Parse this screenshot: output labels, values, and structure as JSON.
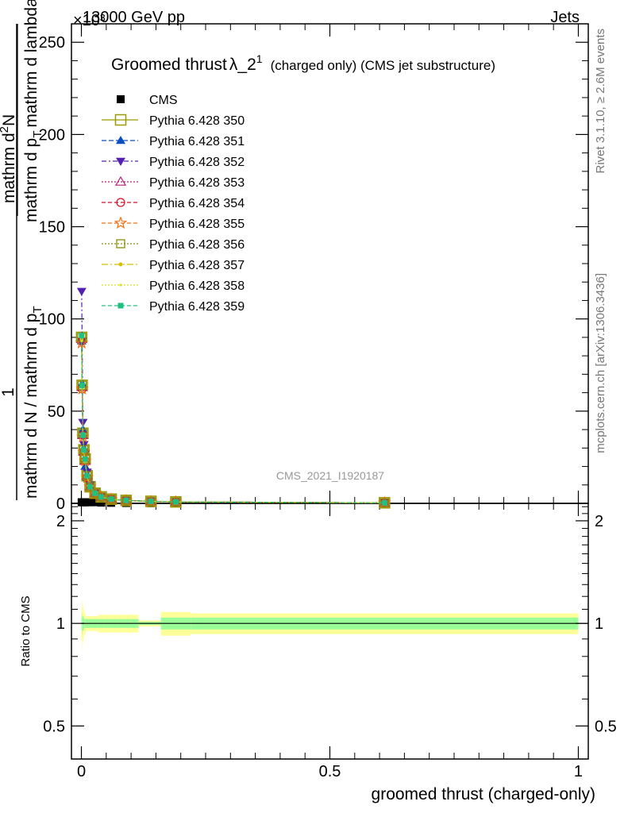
{
  "header": {
    "energy": "13000 GeV pp",
    "process": "Jets",
    "exponent": "×10³",
    "watermark": "CMS_2021_I1920187",
    "rivet": "Rivet 3.1.10, ≥ 2.6M events",
    "mcplots": "mcplots.cern.ch [arXiv:1306.3436]"
  },
  "title": {
    "main": "Groomed thrust",
    "symbol": "λ_2",
    "superscript": "1",
    "suffix": "(charged only) (CMS jet substructure)"
  },
  "ylabel": {
    "prefix": "1",
    "den": "mathrm d N / mathrm d p",
    "den_sub": "T",
    "num": "mathrm d",
    "num_sup": "2",
    "num_tail": "N",
    "num_den": "mathrm d p",
    "num_den_sub": "T",
    "num_den_tail": "mathrm d lambda"
  },
  "ratio_ylabel": "Ratio to CMS",
  "xlabel": "groomed thrust (charged-only)",
  "colors": {
    "band_outer": "#ffff99",
    "band_inner": "#99ff99",
    "cms": "#000000",
    "p350": "#999900",
    "p351": "#0a4fbf",
    "p352": "#5420b0",
    "p353": "#b0207a",
    "p354": "#d0102a",
    "p355": "#f07010",
    "p356": "#8a8a10",
    "p357": "#d8c000",
    "p358": "#d8e020",
    "p359": "#20c080"
  },
  "chart_data": {
    "type": "line",
    "x_range": [
      -0.02,
      1.02
    ],
    "y_range": [
      0,
      260
    ],
    "y_multiplier": 1000,
    "y_ticks": [
      0,
      50,
      100,
      150,
      200,
      250
    ],
    "x_ticks": [
      0,
      0.5,
      1
    ],
    "x_tick_labels": [
      "0",
      "0.5",
      "1"
    ],
    "ratio_range": [
      0.4,
      2.25
    ],
    "ratio_ticks": [
      0.5,
      1,
      2
    ],
    "ratio_tick_labels": [
      "0.5",
      "1",
      "2"
    ],
    "x": [
      0.0005,
      0.0015,
      0.003,
      0.005,
      0.0075,
      0.0115,
      0.0175,
      0.0275,
      0.04,
      0.06,
      0.09,
      0.14,
      0.19,
      0.61
    ],
    "cms_values": [
      0.6,
      0.6,
      0.6,
      0.6,
      0.6,
      0.6,
      0.6,
      0.6,
      0.4,
      0.3,
      0.2,
      0.1,
      0.1,
      0.0
    ],
    "series": [
      {
        "name": "CMS",
        "key": "cms",
        "marker": "square-filled",
        "dash": ""
      },
      {
        "name": "Pythia 6.428 350",
        "key": "p350",
        "marker": "square-open-big",
        "dash": "",
        "values": [
          90,
          64,
          38,
          29,
          24,
          15,
          9,
          5.5,
          3.5,
          2.3,
          1.6,
          1.1,
          0.8,
          0.3
        ]
      },
      {
        "name": "Pythia 6.428 351",
        "key": "p351",
        "marker": "triangle-up-filled",
        "dash": "6,3",
        "values": [
          88,
          65,
          40,
          30,
          20,
          14,
          9,
          5.3,
          3.4,
          2.2,
          1.5,
          1.0,
          0.8,
          0.3
        ]
      },
      {
        "name": "Pythia 6.428 352",
        "key": "p352",
        "marker": "triangle-down-filled",
        "dash": "6,3,2,3",
        "values": [
          115,
          88,
          44,
          32,
          27,
          17,
          10,
          6,
          3.6,
          2.3,
          1.6,
          1.1,
          0.8,
          0.3
        ]
      },
      {
        "name": "Pythia 6.428 353",
        "key": "p353",
        "marker": "triangle-up-open",
        "dash": "2,2",
        "values": [
          89,
          63,
          37,
          28,
          23,
          15,
          9,
          5.4,
          3.5,
          2.3,
          1.6,
          1.1,
          0.8,
          0.3
        ]
      },
      {
        "name": "Pythia 6.428 354",
        "key": "p354",
        "marker": "circle-open",
        "dash": "5,3",
        "values": [
          88,
          62,
          37,
          28,
          23,
          14,
          9,
          5.4,
          3.4,
          2.2,
          1.6,
          1.0,
          0.8,
          0.3
        ]
      },
      {
        "name": "Pythia 6.428 355",
        "key": "p355",
        "marker": "star-open",
        "dash": "5,3",
        "values": [
          87,
          62,
          36,
          28,
          23,
          14,
          9,
          5.3,
          3.4,
          2.2,
          1.5,
          1.0,
          0.8,
          0.3
        ]
      },
      {
        "name": "Pythia 6.428 356",
        "key": "p356",
        "marker": "square-open",
        "dash": "2,2",
        "values": [
          90,
          64,
          38,
          29,
          24,
          15,
          9,
          5.5,
          3.5,
          2.3,
          1.6,
          1.1,
          0.8,
          0.3
        ]
      },
      {
        "name": "Pythia 6.428 357",
        "key": "p357",
        "marker": "dot",
        "dash": "8,3,2,3",
        "values": [
          89,
          63,
          37,
          28,
          23,
          15,
          9,
          5.4,
          3.5,
          2.3,
          1.6,
          1.1,
          0.8,
          0.3
        ]
      },
      {
        "name": "Pythia 6.428 358",
        "key": "p358",
        "marker": "dot-small",
        "dash": "2,2",
        "values": [
          88,
          62,
          37,
          28,
          23,
          14,
          9,
          5.4,
          3.4,
          2.2,
          1.6,
          1.0,
          0.8,
          0.3
        ]
      },
      {
        "name": "Pythia 6.428 359",
        "key": "p359",
        "marker": "square-filled-small",
        "dash": "5,3",
        "values": [
          91,
          64,
          37,
          29,
          24,
          15,
          9,
          5.5,
          3.5,
          2.3,
          1.6,
          1.1,
          0.8,
          0.3
        ]
      }
    ],
    "ratio_band_edges": [
      0,
      0.001,
      0.002,
      0.004,
      0.006,
      0.009,
      0.014,
      0.021,
      0.034,
      0.046,
      0.074,
      0.115,
      0.16,
      0.22,
      1.0
    ],
    "ratio_band_outer": [
      0.11,
      0.16,
      0.12,
      0.09,
      0.07,
      0.05,
      0.05,
      0.05,
      0.06,
      0.06,
      0.06,
      0.02,
      0.08,
      0.07
    ],
    "ratio_band_inner": [
      0.04,
      0.07,
      0.05,
      0.04,
      0.03,
      0.03,
      0.03,
      0.03,
      0.03,
      0.03,
      0.03,
      0.01,
      0.04,
      0.04
    ]
  }
}
